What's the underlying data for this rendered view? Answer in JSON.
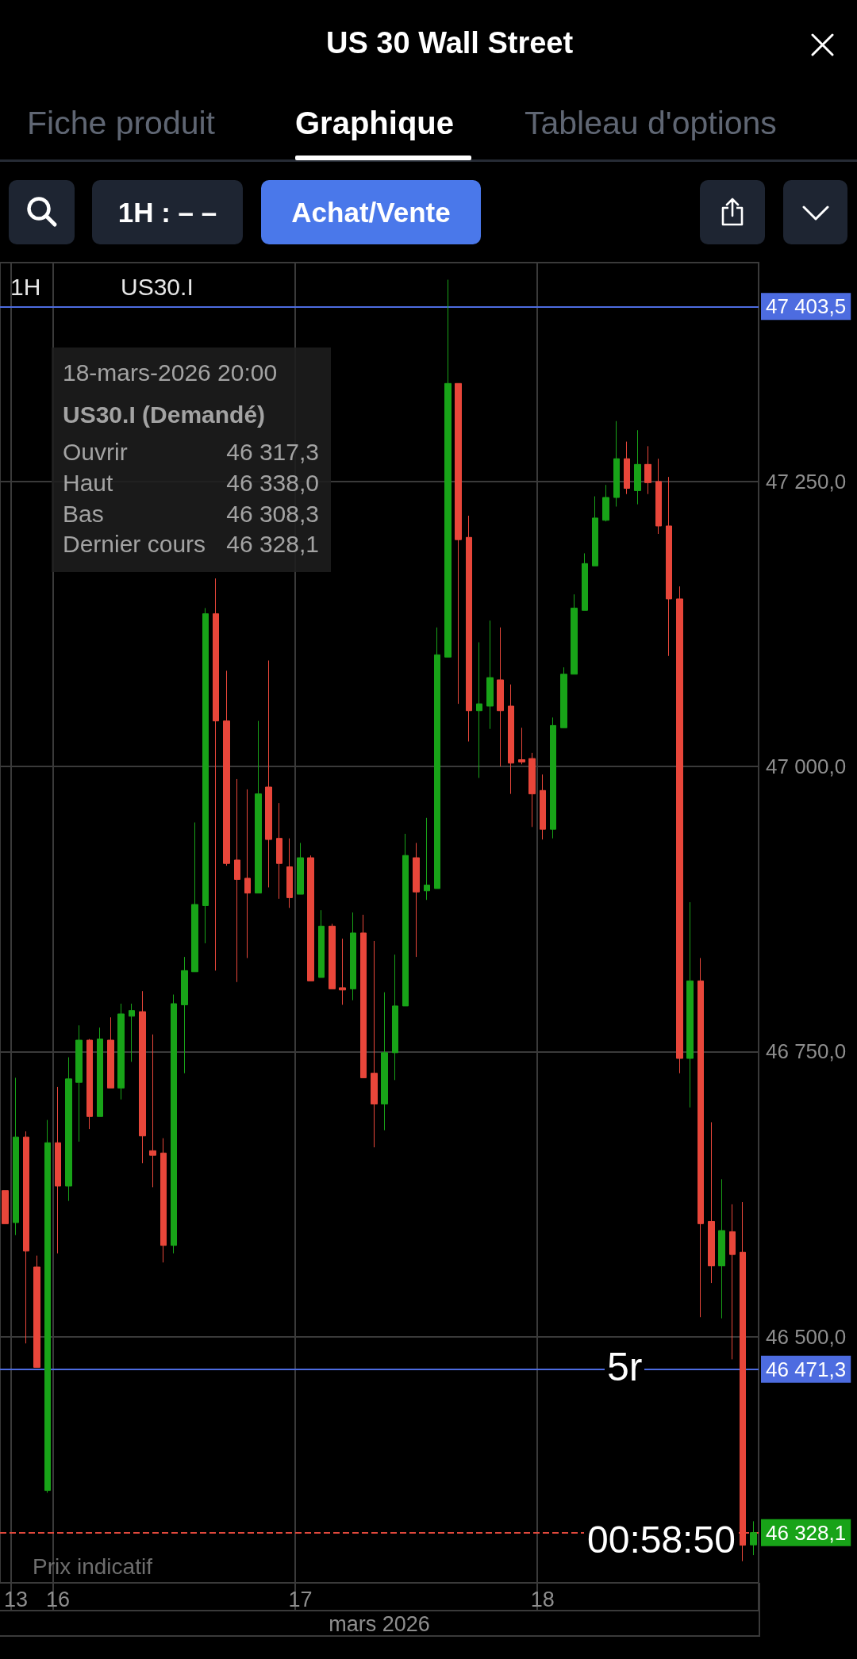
{
  "chart_data": {
    "type": "candlestick",
    "title": "US 30 Wall Street",
    "xlabel": "mars 2026",
    "categories": [
      null,
      "13",
      null,
      null,
      null,
      "16",
      null,
      null,
      null,
      null,
      null,
      null,
      null,
      null,
      null,
      null,
      null,
      null,
      null,
      null,
      null,
      null,
      null,
      null,
      null,
      null,
      null,
      null,
      "17",
      null,
      null,
      null,
      null,
      null,
      null,
      null,
      null,
      null,
      null,
      null,
      null,
      null,
      null,
      null,
      null,
      null,
      null,
      null,
      null,
      null,
      null,
      "18",
      null,
      null,
      null,
      null,
      null,
      null,
      null,
      null,
      null,
      null,
      null,
      null,
      null,
      null,
      null,
      null,
      null,
      null,
      null,
      null
    ],
    "ohlc": [
      [
        46628,
        46628,
        46599,
        46599
      ],
      [
        46600,
        46727,
        46589,
        46675
      ],
      [
        46675,
        46680,
        46494,
        46575
      ],
      [
        46561,
        46571,
        46473,
        46473
      ],
      [
        46365,
        46690,
        46363,
        46670
      ],
      [
        46670,
        46719,
        46573,
        46632
      ],
      [
        46632,
        46745,
        46619,
        46726
      ],
      [
        46723,
        46773,
        46671,
        46760
      ],
      [
        46760,
        46761,
        46682,
        46693
      ],
      [
        46693,
        46771,
        46693,
        46761
      ],
      [
        46760,
        46780,
        46718,
        46718
      ],
      [
        46718,
        46792,
        46708,
        46783
      ],
      [
        46781,
        46792,
        46741,
        46786
      ],
      [
        46785,
        46803,
        46652,
        46676
      ],
      [
        46663,
        46765,
        46631,
        46659
      ],
      [
        46661,
        46674,
        46565,
        46580
      ],
      [
        46580,
        46800,
        46573,
        46792
      ],
      [
        46791,
        46833,
        46731,
        46821
      ],
      [
        46820,
        46951,
        46820,
        46879
      ],
      [
        46878,
        47139,
        46845,
        47134
      ],
      [
        47134,
        47165,
        46821,
        47040
      ],
      [
        47040,
        47084,
        46913,
        46915
      ],
      [
        46918,
        46989,
        46811,
        46901
      ],
      [
        46902,
        46980,
        46832,
        46889
      ],
      [
        46889,
        47040,
        46889,
        46976
      ],
      [
        46982,
        47093,
        46894,
        46936
      ],
      [
        46937,
        46968,
        46884,
        46915
      ],
      [
        46912,
        46937,
        46876,
        46885
      ],
      [
        46888,
        46933,
        46888,
        46920
      ],
      [
        46920,
        46922,
        46812,
        46812
      ],
      [
        46815,
        46874,
        46815,
        46860
      ],
      [
        46860,
        46862,
        46805,
        46805
      ],
      [
        46806,
        46849,
        46791,
        46804
      ],
      [
        46805,
        46872,
        46795,
        46854
      ],
      [
        46854,
        46870,
        46727,
        46727
      ],
      [
        46731,
        46847,
        46666,
        46704
      ],
      [
        46704,
        46802,
        46681,
        46749
      ],
      [
        46749,
        46835,
        46725,
        46790
      ],
      [
        46790,
        46941,
        46790,
        46922
      ],
      [
        46920,
        46933,
        46833,
        46890
      ],
      [
        46891,
        46955,
        46883,
        46896
      ],
      [
        46893,
        47122,
        46893,
        47098
      ],
      [
        47096,
        47427,
        47096,
        47336
      ],
      [
        47336,
        47336,
        47055,
        47199
      ],
      [
        47201,
        47220,
        47022,
        47049
      ],
      [
        47049,
        47109,
        46990,
        47055
      ],
      [
        47053,
        47128,
        47033,
        47078
      ],
      [
        47076,
        47122,
        47000,
        47049
      ],
      [
        47053,
        47072,
        46976,
        47003
      ],
      [
        47006,
        47034,
        47002,
        47004
      ],
      [
        47007,
        47012,
        46947,
        46976
      ],
      [
        46979,
        46993,
        46936,
        46945
      ],
      [
        46945,
        47043,
        46937,
        47036
      ],
      [
        47034,
        47087,
        47034,
        47081
      ],
      [
        47081,
        47151,
        47081,
        47139
      ],
      [
        47137,
        47187,
        47137,
        47178
      ],
      [
        47176,
        47237,
        47176,
        47218
      ],
      [
        47216,
        47247,
        47215,
        47236
      ],
      [
        47236,
        47303,
        47228,
        47270
      ],
      [
        47270,
        47285,
        47239,
        47244
      ],
      [
        47242,
        47295,
        47230,
        47265
      ],
      [
        47265,
        47281,
        47239,
        47249
      ],
      [
        47250,
        47270,
        47204,
        47211
      ],
      [
        47211,
        47254,
        47097,
        47147
      ],
      [
        47147,
        47158,
        46731,
        46744
      ],
      [
        46744,
        46881,
        46701,
        46812
      ],
      [
        46812,
        46832,
        46517,
        46599
      ],
      [
        46601,
        46688,
        46547,
        46562
      ],
      [
        46562,
        46638,
        46516,
        46593
      ],
      [
        46592,
        46616,
        46480,
        46572
      ],
      [
        46574,
        46618,
        46303,
        46317
      ],
      [
        46317.3,
        46338.0,
        46308.3,
        46328.1
      ]
    ],
    "colors": [
      "#e8463a",
      "#18a318",
      "#e8463a",
      "#e8463a",
      "#18a318",
      "#e8463a",
      "#18a318",
      "#18a318",
      "#e8463a",
      "#18a318",
      "#e8463a",
      "#18a318",
      "#18a318",
      "#e8463a",
      "#e8463a",
      "#e8463a",
      "#18a318",
      "#18a318",
      "#18a318",
      "#18a318",
      "#e8463a",
      "#e8463a",
      "#e8463a",
      "#e8463a",
      "#18a318",
      "#e8463a",
      "#e8463a",
      "#e8463a",
      "#18a318",
      "#e8463a",
      "#18a318",
      "#e8463a",
      "#e8463a",
      "#18a318",
      "#e8463a",
      "#e8463a",
      "#18a318",
      "#18a318",
      "#18a318",
      "#e8463a",
      "#18a318",
      "#18a318",
      "#18a318",
      "#e8463a",
      "#e8463a",
      "#18a318",
      "#18a318",
      "#e8463a",
      "#e8463a",
      "#e8463a",
      "#e8463a",
      "#e8463a",
      "#18a318",
      "#18a318",
      "#18a318",
      "#18a318",
      "#18a318",
      "#18a318",
      "#18a318",
      "#e8463a",
      "#18a318",
      "#e8463a",
      "#e8463a",
      "#e8463a",
      "#e8463a",
      "#18a318",
      "#e8463a",
      "#e8463a",
      "#18a318",
      "#e8463a",
      "#e8463a",
      "#18a318"
    ],
    "ylim": [
      46284,
      47442
    ],
    "yticks": [
      {
        "value": 46500,
        "label": "46 500,0"
      },
      {
        "value": 46750,
        "label": "46 750,0"
      },
      {
        "value": 47000,
        "label": "47 000,0"
      },
      {
        "value": 47250,
        "label": "47 250,0"
      }
    ],
    "grid": true,
    "ref_lines": [
      {
        "axis": "y",
        "value": 47403.5,
        "label": "47 403,5",
        "color": "#4d6ce0"
      },
      {
        "axis": "y",
        "value": 46471.3,
        "label": "46 471,3",
        "color": "#4d6ce0"
      },
      {
        "axis": "y",
        "value": 46328.1,
        "label": "46 328,1",
        "color": "#e0483c",
        "line_style": "dashed"
      }
    ],
    "annotations": [
      "Fiche produit",
      "Graphique",
      "Tableau d'options",
      "1H : – –",
      "Achat/Vente",
      "1H",
      "US30.I",
      "18-mars-2026 20:00",
      "US30.I (Demandé)",
      "Ouvrir",
      "46 317,3",
      "Haut",
      "46 338,0",
      "Bas",
      "46 308,3",
      "Dernier cours",
      "46 328,1",
      "5r",
      "00:58:50",
      "Prix indicatif"
    ]
  }
}
